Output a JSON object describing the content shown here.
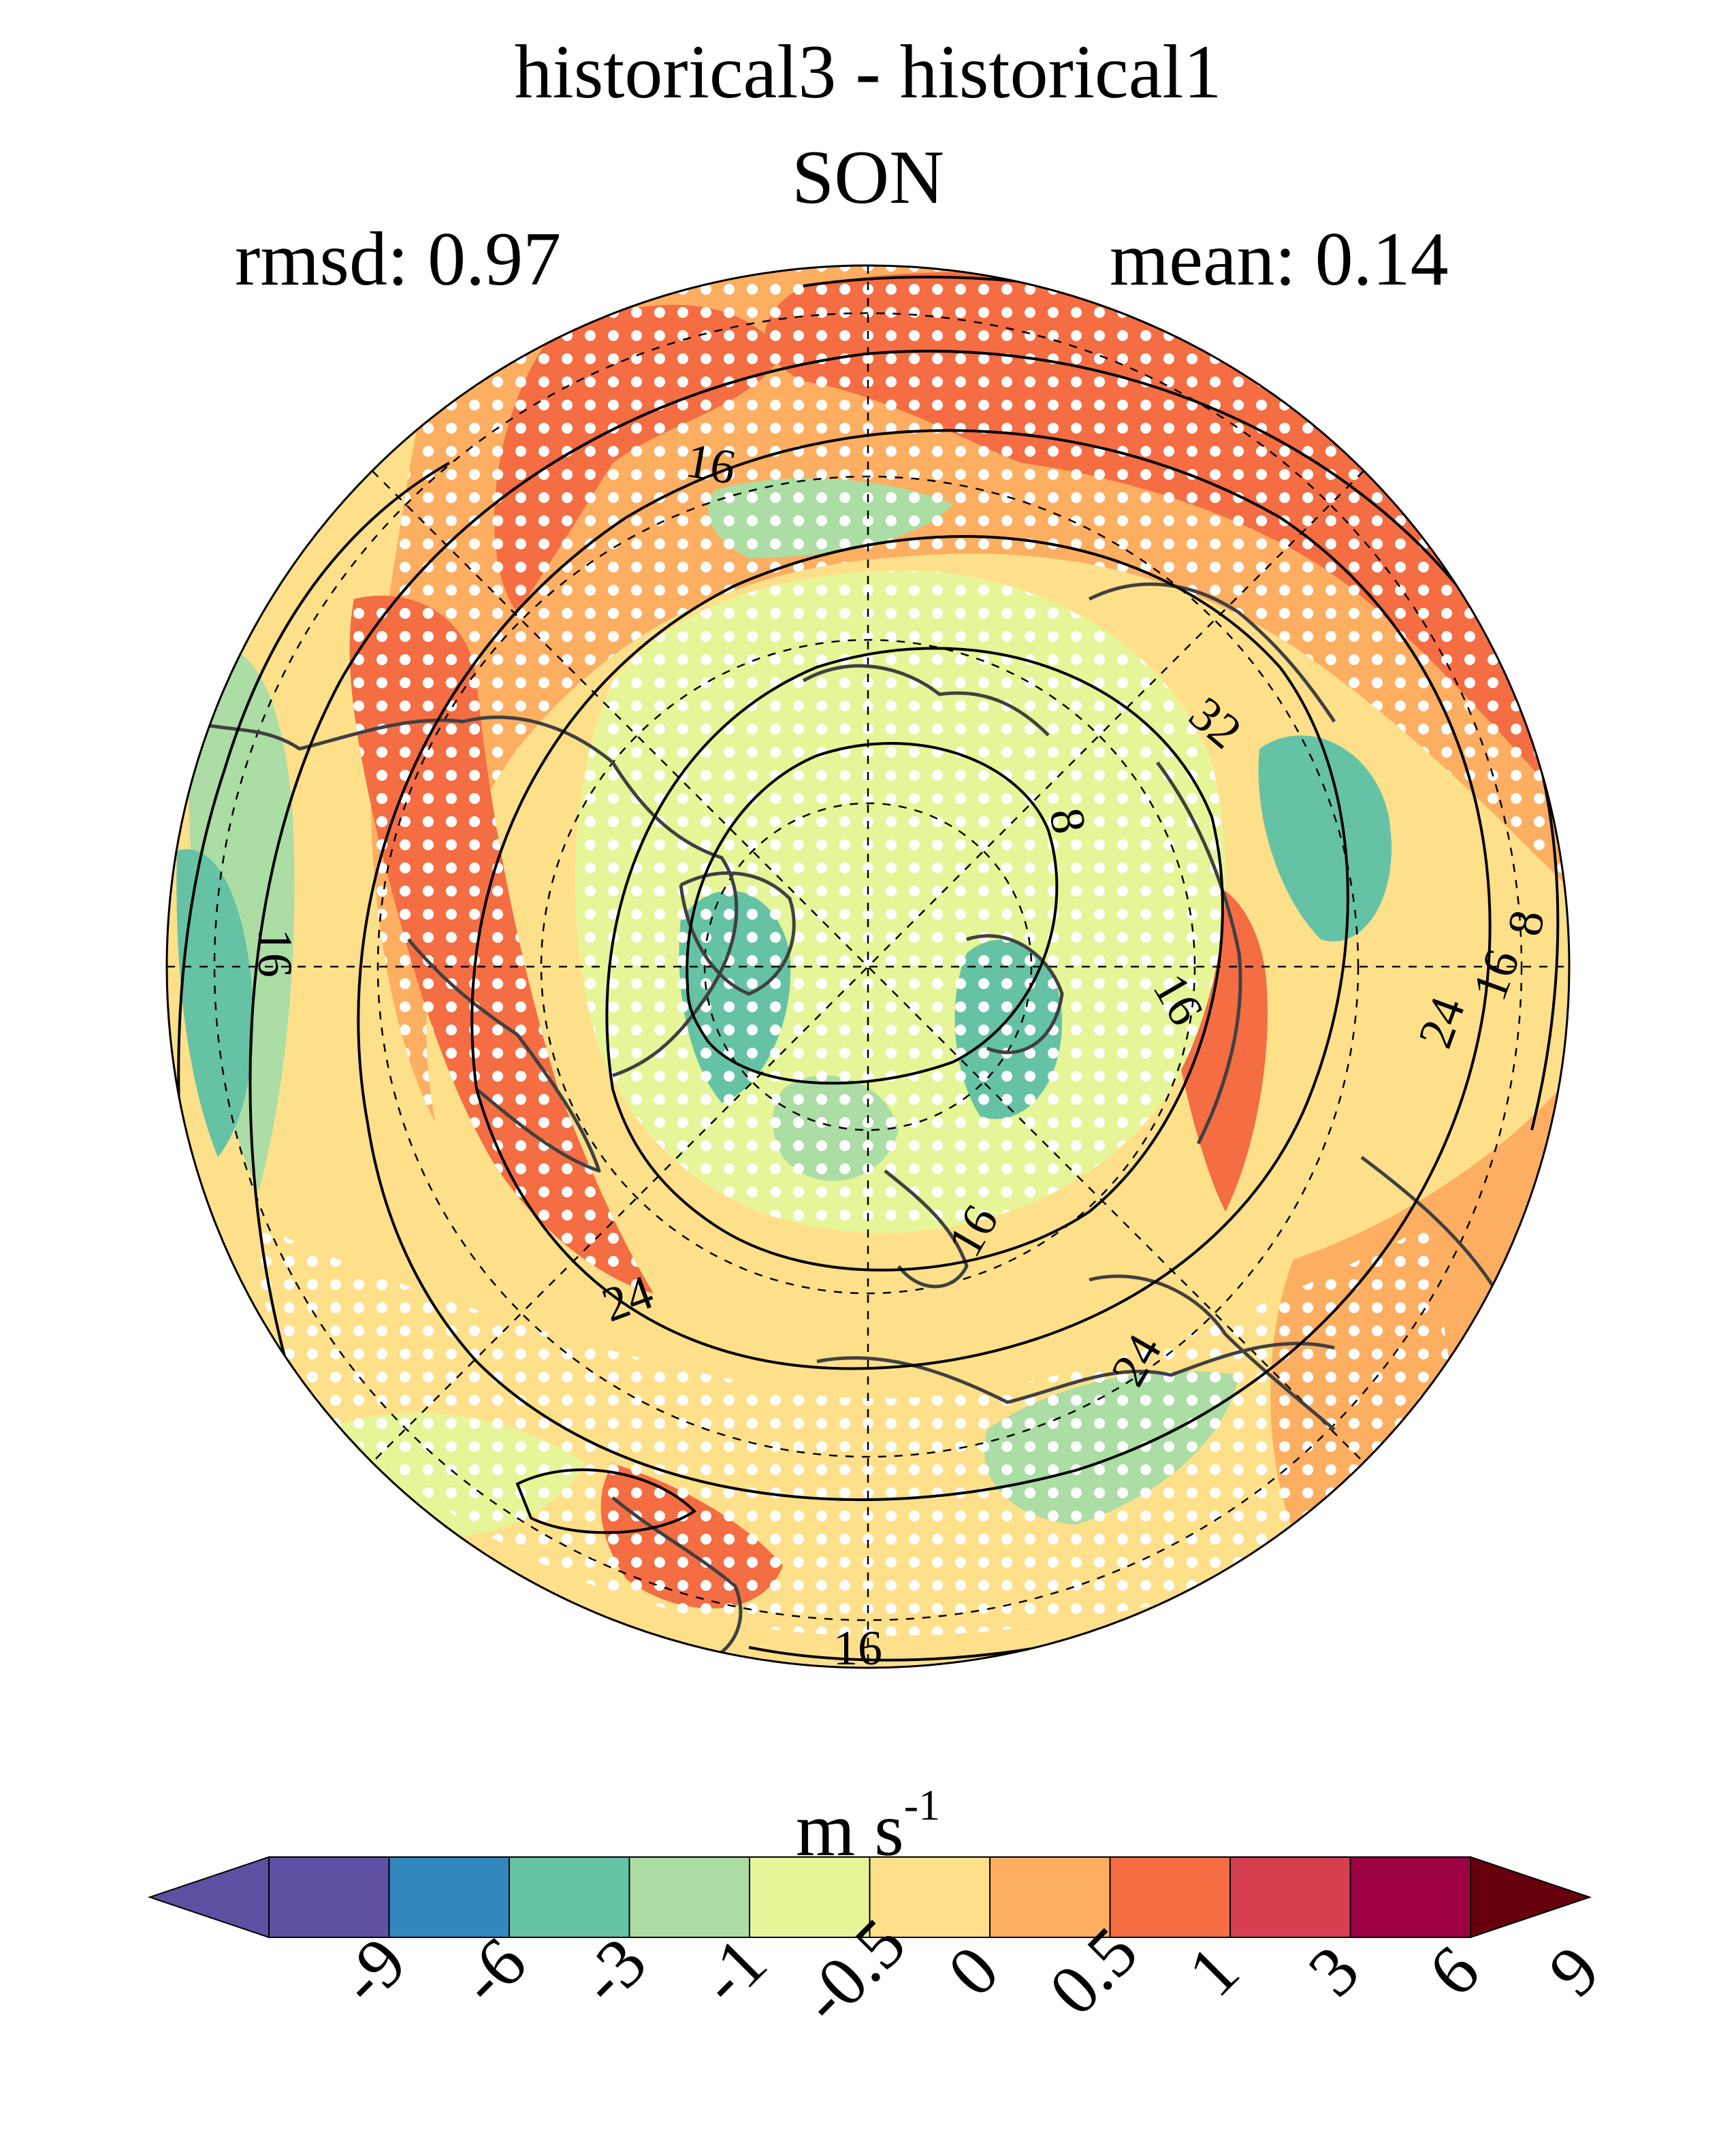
{
  "header": {
    "title": "historical3 - historical1",
    "season": "SON",
    "rmsd": "rmsd: 0.97",
    "mean": "mean: 0.14"
  },
  "map": {
    "projection": "north-polar-stereographic",
    "contour_labels": [
      "16",
      "16",
      "16",
      "16",
      "16",
      "16",
      "8",
      "8",
      "32",
      "24",
      "24",
      "24"
    ],
    "fill_colors": {
      "positive_strong": "#f46d43",
      "positive": "#fdae61",
      "neutral_pos": "#fee08b",
      "neutral_neg": "#e6f598",
      "negative": "#abdda4",
      "negative_strong": "#66c2a5"
    },
    "stippling": "white-dots"
  },
  "colorbar": {
    "units_main": "m s",
    "units_exp": "-1",
    "colors": [
      "#5e4fa2",
      "#6050a3",
      "#3288bd",
      "#66c2a5",
      "#abdda4",
      "#e6f598",
      "#fee08b",
      "#fdae61",
      "#f46d43",
      "#d53e4f",
      "#9e0142",
      "#67000d"
    ],
    "ticks": [
      "-9",
      "-6",
      "-3",
      "-1",
      "-0.5",
      "0",
      "0.5",
      "1",
      "3",
      "6",
      "9"
    ]
  }
}
